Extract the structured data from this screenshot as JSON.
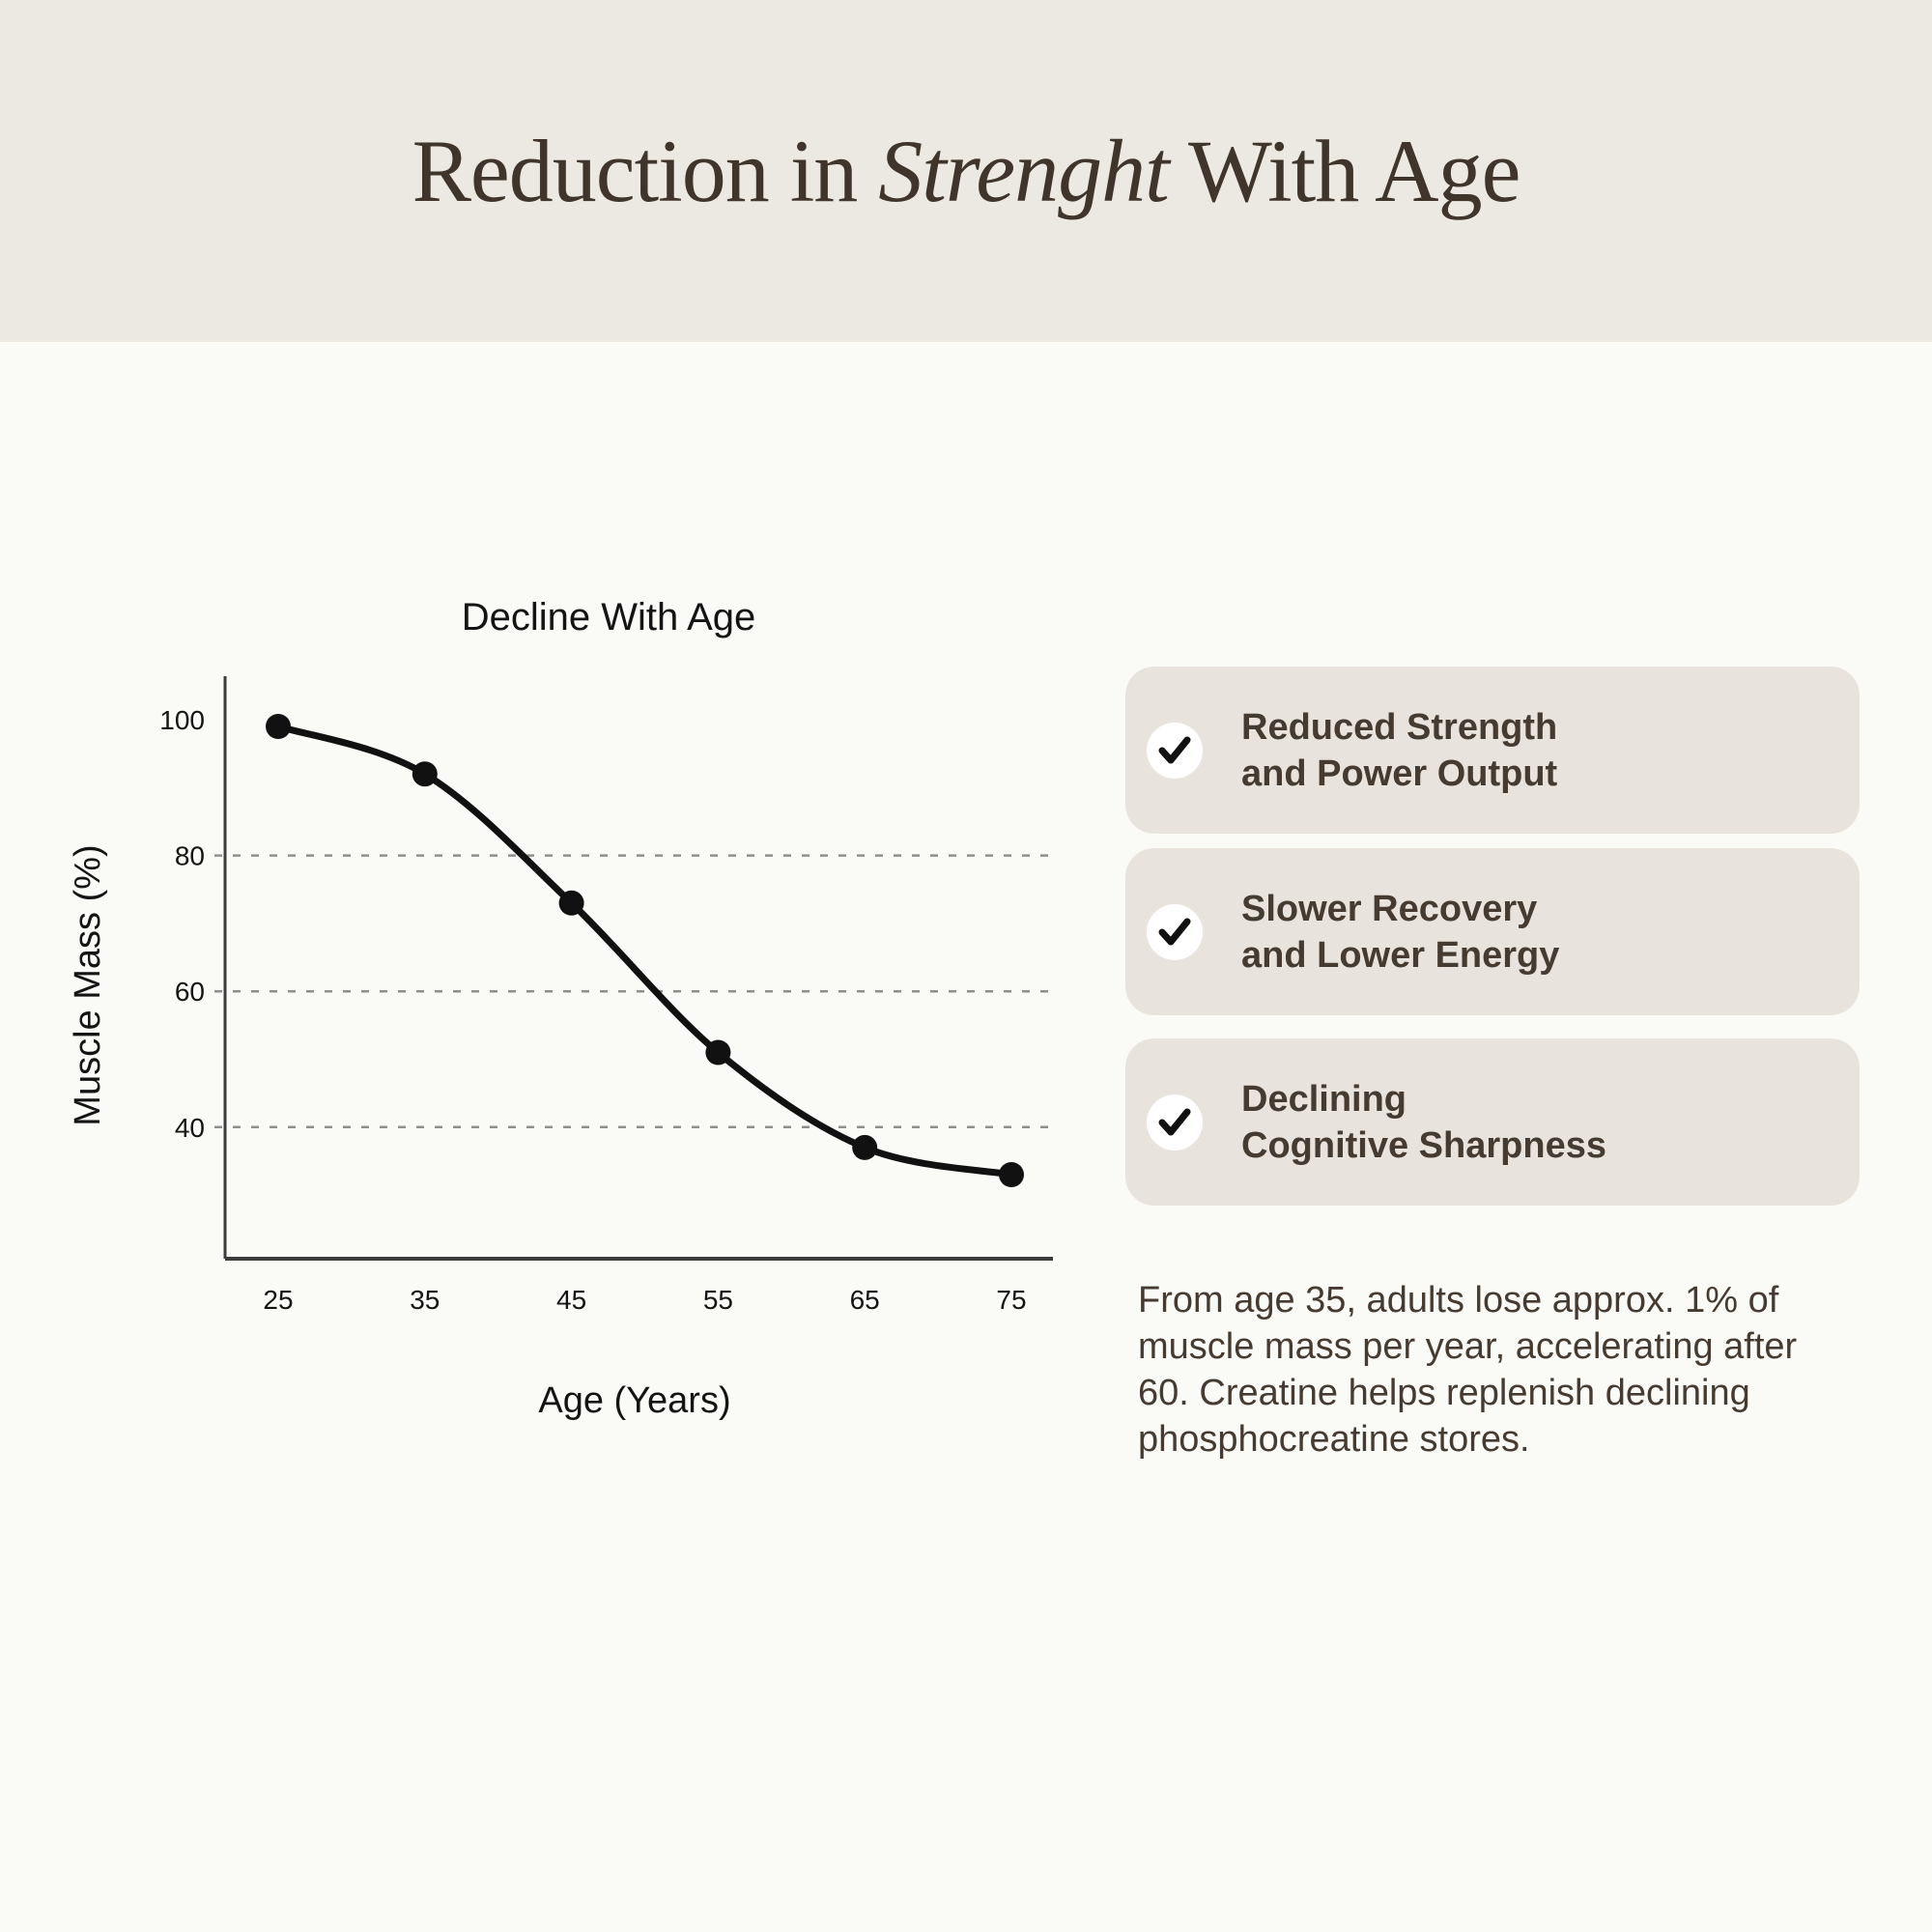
{
  "header": {
    "title_prefix": "Reduction in ",
    "title_italic": "Strenght",
    "title_suffix": " With Age"
  },
  "chart_data": {
    "type": "line",
    "title": "Decline With Age",
    "xlabel": "Age (Years)",
    "ylabel": "Muscle Mass (%)",
    "x": [
      25,
      35,
      45,
      55,
      65,
      75
    ],
    "series": [
      {
        "name": "Muscle Mass (%)",
        "values": [
          99,
          92,
          73,
          51,
          37,
          33
        ]
      }
    ],
    "yticks": [
      100,
      80,
      60,
      40
    ],
    "gridlines_at": [
      80,
      60,
      40
    ],
    "ylim": [
      20,
      106
    ],
    "xlim": [
      22,
      78
    ],
    "grid": "horizontal-dashed",
    "legend_position": "none",
    "line_color": "#111111",
    "marker": "filled-circle"
  },
  "benefits": [
    {
      "line1": "Reduced Strength",
      "line2": "and Power Output"
    },
    {
      "line1": "Slower Recovery",
      "line2": "and Lower Energy"
    },
    {
      "line1": "Declining",
      "line2": "Cognitive Sharpness"
    }
  ],
  "note": "From age 35, adults lose approx. 1% of muscle mass per year, accelerating after 60. Creatine helps replenish declining phosphocreatine stores.",
  "colors": {
    "header_band": "#ece9e2",
    "background": "#fafaf7",
    "card_background": "#e8e4dd",
    "text_brown": "#463b30",
    "title_brown": "#3f352b",
    "chart_ink": "#141414",
    "axis_gray": "#3c3c3c",
    "gridline_gray": "#8f8f8f",
    "check_circle": "#ffffff"
  }
}
